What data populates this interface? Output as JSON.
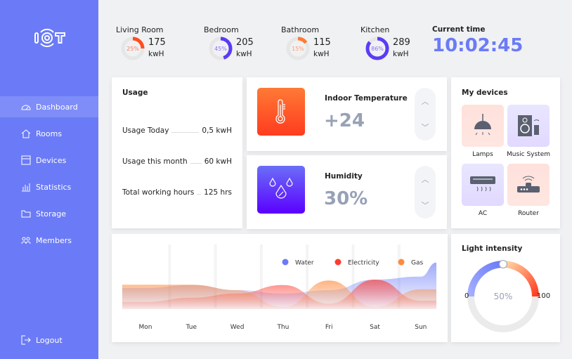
{
  "logo": "IOT",
  "sidebar": {
    "items": [
      {
        "label": "Dashboard",
        "icon": "dashboard-icon",
        "active": true
      },
      {
        "label": "Rooms",
        "icon": "home-icon"
      },
      {
        "label": "Devices",
        "icon": "devices-icon"
      },
      {
        "label": "Statistics",
        "icon": "statistics-icon"
      },
      {
        "label": "Storage",
        "icon": "folder-icon"
      },
      {
        "label": "Members",
        "icon": "members-icon"
      }
    ],
    "logout": "Logout"
  },
  "rooms": [
    {
      "name": "Living Room",
      "percent": 25,
      "percent_label": "25%",
      "value": "175",
      "unit": "kwH",
      "color": "#ff4d1f"
    },
    {
      "name": "Bedroom",
      "percent": 45,
      "percent_label": "45%",
      "value": "205",
      "unit": "kwH",
      "color": "#5a3cf5"
    },
    {
      "name": "Bathroom",
      "percent": 15,
      "percent_label": "15%",
      "value": "115",
      "unit": "kwH",
      "color": "#ff7a35"
    },
    {
      "name": "Kitchen",
      "percent": 86,
      "percent_label": "86%",
      "value": "289",
      "unit": "kwH",
      "color": "#5a3cf5"
    }
  ],
  "current_time": {
    "label": "Current time",
    "value": "10:02:45",
    "color": "#6b7bf7"
  },
  "usage": {
    "title": "Usage",
    "rows": [
      {
        "label": "Usage Today",
        "value": "0,5 kwH"
      },
      {
        "label": "Usage this month",
        "value": "60 kwH"
      },
      {
        "label": "Total working hours",
        "value": "125 hrs"
      }
    ]
  },
  "temperature": {
    "title": "Indoor Temperature",
    "value": "+24"
  },
  "humidity": {
    "title": "Humidity",
    "value": "30%"
  },
  "devices": {
    "title": "My devices",
    "items": [
      "Lamps",
      "Music System",
      "AC",
      "Router"
    ]
  },
  "light": {
    "title": "Light intensity",
    "min": "0",
    "max": "100",
    "value": 50,
    "value_label": "50%"
  },
  "chart_data": {
    "type": "area",
    "categories": [
      "Mon",
      "Tue",
      "Wed",
      "Thu",
      "Fri",
      "Sat",
      "Sun"
    ],
    "series": [
      {
        "name": "Water",
        "color": "#6b7bf7",
        "values": [
          50,
          57,
          45,
          37,
          45,
          70,
          77
        ]
      },
      {
        "name": "Electricity",
        "color": "#ff3b2f",
        "values": [
          17,
          27,
          37,
          57,
          13,
          70,
          20
        ]
      },
      {
        "name": "Gas",
        "color": "#ff8a3d",
        "values": [
          58,
          58,
          45,
          5,
          68,
          5,
          47
        ]
      }
    ],
    "legend": "top-right",
    "grid": false,
    "ylim": [
      0,
      100
    ]
  }
}
